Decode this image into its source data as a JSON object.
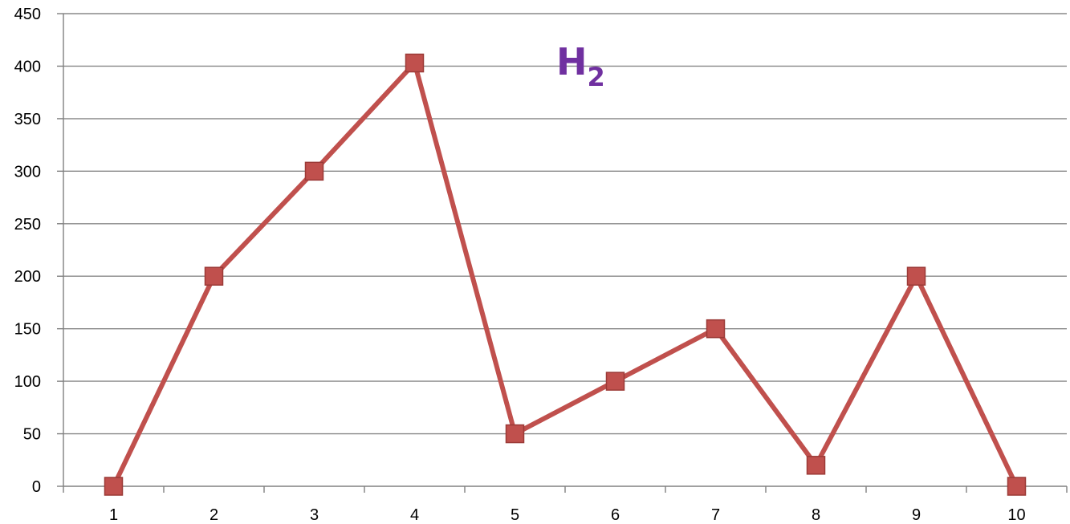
{
  "chart_data": {
    "type": "line",
    "title": "H",
    "title_subscript": "2",
    "xlabel": "",
    "ylabel": "",
    "categories": [
      "1",
      "2",
      "3",
      "4",
      "5",
      "6",
      "7",
      "8",
      "9",
      "10"
    ],
    "series": [
      {
        "values": [
          0,
          200,
          300,
          403,
          50,
          100,
          150,
          20,
          200,
          0
        ],
        "color": "#c0504d",
        "marker": "square"
      }
    ],
    "ylim": [
      0,
      450
    ],
    "yticks": [
      0,
      50,
      100,
      150,
      200,
      250,
      300,
      350,
      400,
      450
    ],
    "grid": true,
    "legend": "none",
    "title_color": "#7030a0",
    "gridline_color": "#888888",
    "axis_color": "#808080"
  }
}
